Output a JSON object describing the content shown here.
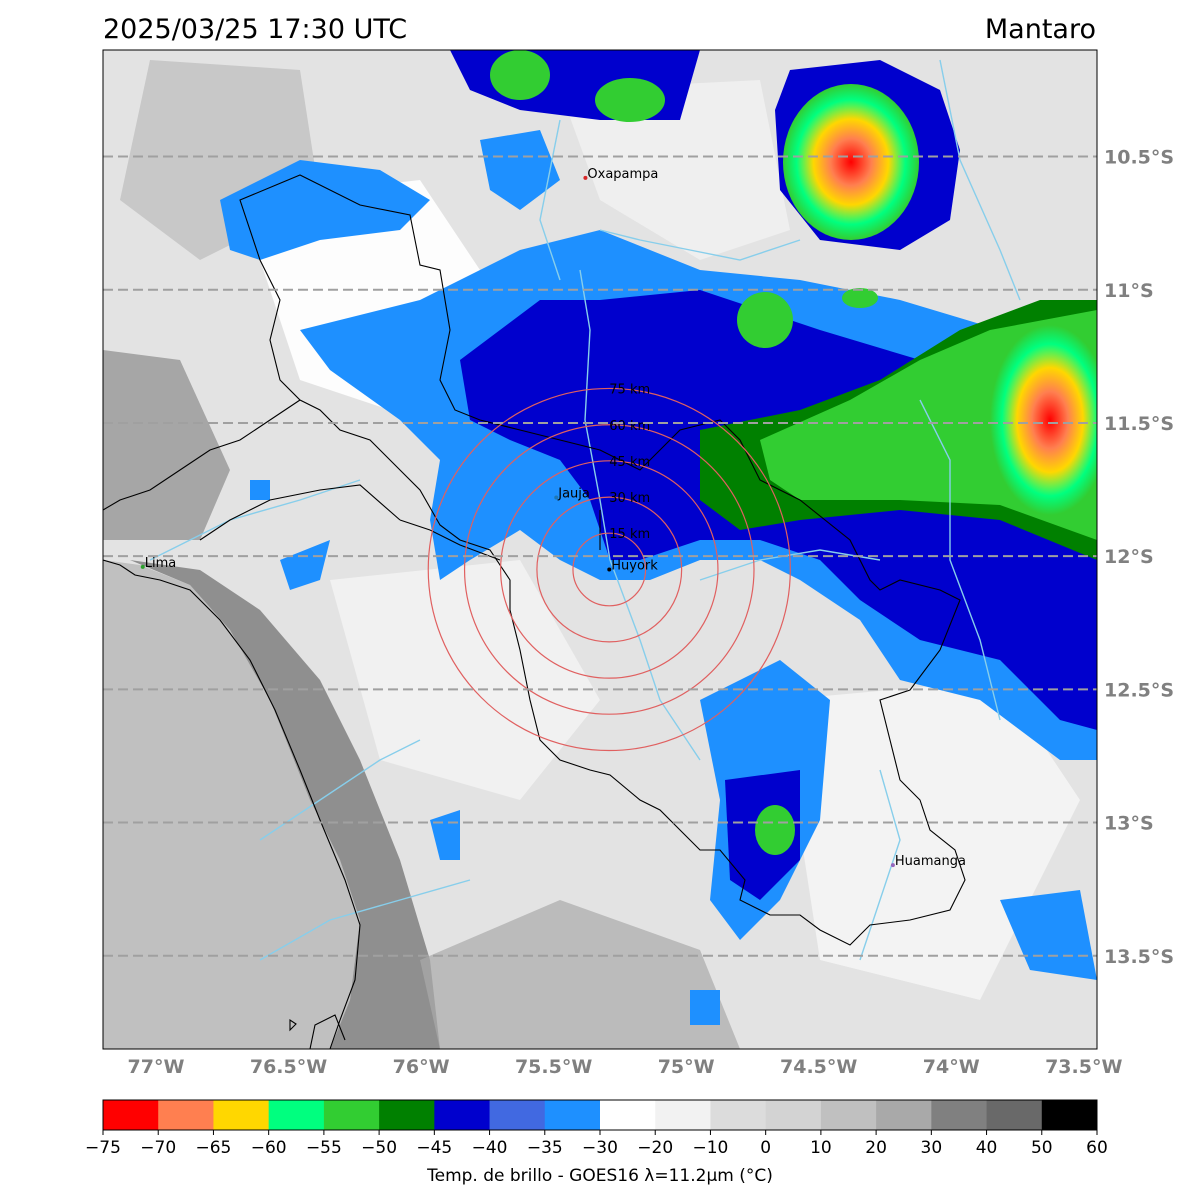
{
  "header": {
    "datetime": "2025/03/25 17:30 UTC",
    "region": "Mantaro"
  },
  "map": {
    "lon_range": [
      -77.2,
      -73.45
    ],
    "lat_range": [
      -13.85,
      -10.1
    ],
    "lat_ticks": [
      {
        "value": -10.5,
        "label": "10.5°S"
      },
      {
        "value": -11.0,
        "label": "11°S"
      },
      {
        "value": -11.5,
        "label": "11.5°S"
      },
      {
        "value": -12.0,
        "label": "12°S"
      },
      {
        "value": -12.5,
        "label": "12.5°S"
      },
      {
        "value": -13.0,
        "label": "13°S"
      },
      {
        "value": -13.5,
        "label": "13.5°S"
      }
    ],
    "lon_ticks": [
      {
        "value": -77.0,
        "label": "77°W"
      },
      {
        "value": -76.5,
        "label": "76.5°W"
      },
      {
        "value": -76.0,
        "label": "76°W"
      },
      {
        "value": -75.5,
        "label": "75.5°W"
      },
      {
        "value": -75.0,
        "label": "75°W"
      },
      {
        "value": -74.5,
        "label": "74.5°W"
      },
      {
        "value": -74.0,
        "label": "74°W"
      },
      {
        "value": -73.5,
        "label": "73.5°W"
      }
    ],
    "cities": [
      {
        "name": "Oxapampa",
        "lon": -75.38,
        "lat": -10.58,
        "color": "#d62728"
      },
      {
        "name": "Jauja",
        "lon": -75.49,
        "lat": -11.78,
        "color": "#1f77b4"
      },
      {
        "name": "Huyork",
        "lon": -75.29,
        "lat": -12.05,
        "color": "#000000"
      },
      {
        "name": "Lima",
        "lon": -77.05,
        "lat": -12.04,
        "color": "#2ca02c"
      },
      {
        "name": "Huamanga",
        "lon": -74.22,
        "lat": -13.16,
        "color": "#9467bd"
      }
    ],
    "range_rings": {
      "center": {
        "lon": -75.29,
        "lat": -12.05
      },
      "labels": [
        "15 km",
        "30 km",
        "45 km",
        "60 km",
        "75 km"
      ],
      "radii_deg": [
        0.137,
        0.273,
        0.41,
        0.546,
        0.683
      ],
      "color": "#e06060"
    }
  },
  "colorbar": {
    "label": "Temp. de brillo - GOES16 λ=11.2μm (°C)",
    "ticks": [
      "−75",
      "−70",
      "−65",
      "−60",
      "−55",
      "−50",
      "−45",
      "−40",
      "−35",
      "−30",
      "−20",
      "−10",
      "0",
      "10",
      "20",
      "30",
      "40",
      "50",
      "60"
    ],
    "colors": [
      "#ff0000",
      "#ff7f50",
      "#ffd700",
      "#00ff7f",
      "#32cd32",
      "#008000",
      "#0000cd",
      "#4169e1",
      "#1e90ff",
      "#ffffff",
      "#f2f2f2",
      "#dcdcdc",
      "#d3d3d3",
      "#c0c0c0",
      "#a9a9a9",
      "#808080",
      "#696969",
      "#000000"
    ]
  }
}
